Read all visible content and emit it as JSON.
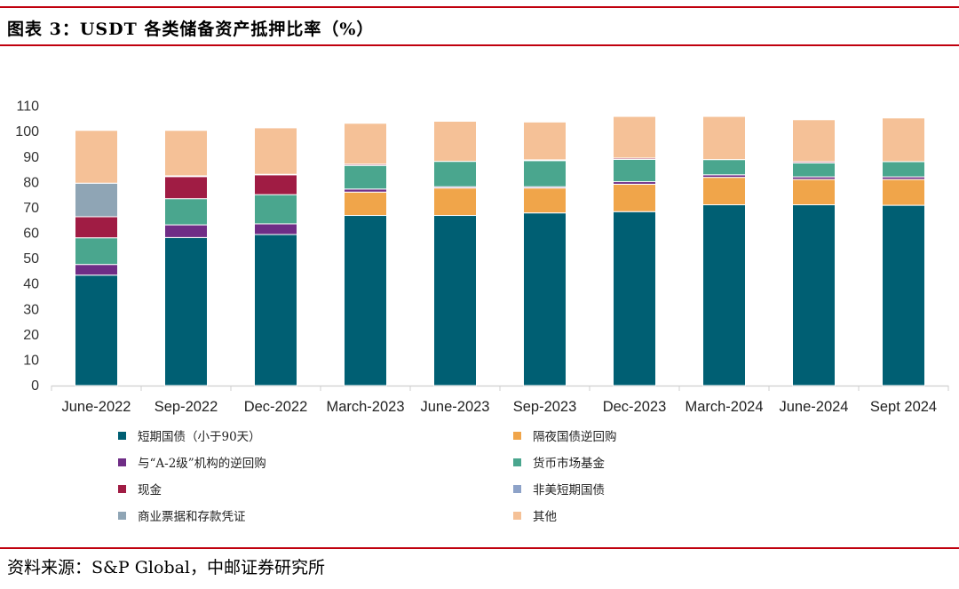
{
  "title": "图表 3：USDT 各类储备资产抵押比率（%）",
  "source": "资料来源：S&P Global，中邮证券研究所",
  "chart_data": {
    "type": "bar",
    "stacked": true,
    "categories": [
      "June-2022",
      "Sep-2022",
      "Dec-2022",
      "March-2023",
      "June-2023",
      "Sep-2023",
      "Dec-2023",
      "March-2024",
      "June-2024",
      "Sept 2024"
    ],
    "ylim": [
      0,
      110
    ],
    "yticks": [
      0,
      10,
      20,
      30,
      40,
      50,
      60,
      70,
      80,
      90,
      100,
      110
    ],
    "xlabel": "",
    "ylabel": "",
    "series": [
      {
        "name": "短期国债（小于90天）",
        "color": "#005f73",
        "values": [
          43.5,
          58.3,
          59.5,
          67.0,
          67.0,
          68.0,
          68.5,
          71.2,
          71.2,
          71.0
        ]
      },
      {
        "name": "隔夜国债逆回购",
        "color": "#f0a54a",
        "values": [
          0,
          0,
          0,
          9.2,
          10.8,
          9.8,
          10.8,
          10.8,
          10.0,
          10.2
        ]
      },
      {
        "name": "与“A-2级”机构的逆回购",
        "color": "#6f2d86",
        "values": [
          4.2,
          5.0,
          4.2,
          1.2,
          0.5,
          0.5,
          1.0,
          1.0,
          1.0,
          1.0
        ]
      },
      {
        "name": "货币市场基金",
        "color": "#4aa68e",
        "values": [
          10.5,
          10.3,
          11.5,
          9.3,
          10.0,
          10.3,
          8.8,
          6.0,
          5.5,
          6.0
        ]
      },
      {
        "name": "现金",
        "color": "#a01c44",
        "values": [
          8.3,
          8.7,
          7.8,
          0.5,
          0,
          0.3,
          0.5,
          0,
          0.5,
          0
        ]
      },
      {
        "name": "非美短期国债",
        "color": "#8da2c8",
        "values": [
          0,
          0.3,
          0.2,
          0,
          0,
          0,
          0,
          0,
          0,
          0
        ]
      },
      {
        "name": "商业票据和存款凭证",
        "color": "#8fa5b5",
        "values": [
          13.2,
          0,
          0,
          0,
          0,
          0,
          0,
          0,
          0,
          0
        ]
      },
      {
        "name": "其他",
        "color": "#f5c197",
        "values": [
          20.8,
          17.9,
          18.3,
          16.1,
          15.8,
          14.9,
          16.4,
          17.0,
          16.5,
          17.2
        ]
      }
    ],
    "legend_order": [
      0,
      1,
      2,
      3,
      4,
      5,
      6,
      7
    ]
  }
}
